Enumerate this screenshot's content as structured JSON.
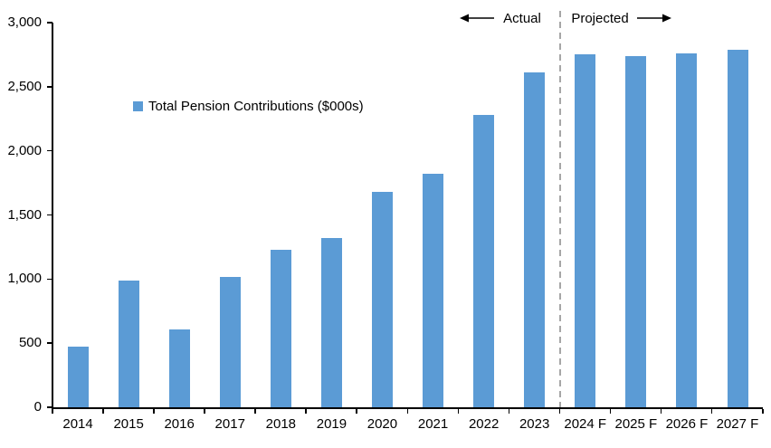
{
  "chart_data": {
    "type": "bar",
    "title": "",
    "legend_label": "Total Pension Contributions ($000s)",
    "categories": [
      "2014",
      "2015",
      "2016",
      "2017",
      "2018",
      "2019",
      "2020",
      "2021",
      "2022",
      "2023",
      "2024 F",
      "2025 F",
      "2026 F",
      "2027 F"
    ],
    "values": [
      470,
      990,
      610,
      1020,
      1230,
      1320,
      1680,
      1820,
      2280,
      2610,
      2750,
      2740,
      2760,
      2790
    ],
    "ylim": [
      0,
      3000
    ],
    "ytick_values": [
      0,
      500,
      1000,
      1500,
      2000,
      2500,
      3000
    ],
    "ytick_labels": [
      "0",
      "500",
      "1,000",
      "1,500",
      "2,000",
      "2,500",
      "3,000"
    ],
    "grid": false,
    "legend_position": "inside-top-left",
    "bar_color": "#5B9BD5",
    "axis_color": "#000000",
    "divider_color": "#A6A6A6",
    "divider_boundary_index": 10,
    "annotations": {
      "actual": "Actual",
      "projected": "Projected"
    }
  }
}
